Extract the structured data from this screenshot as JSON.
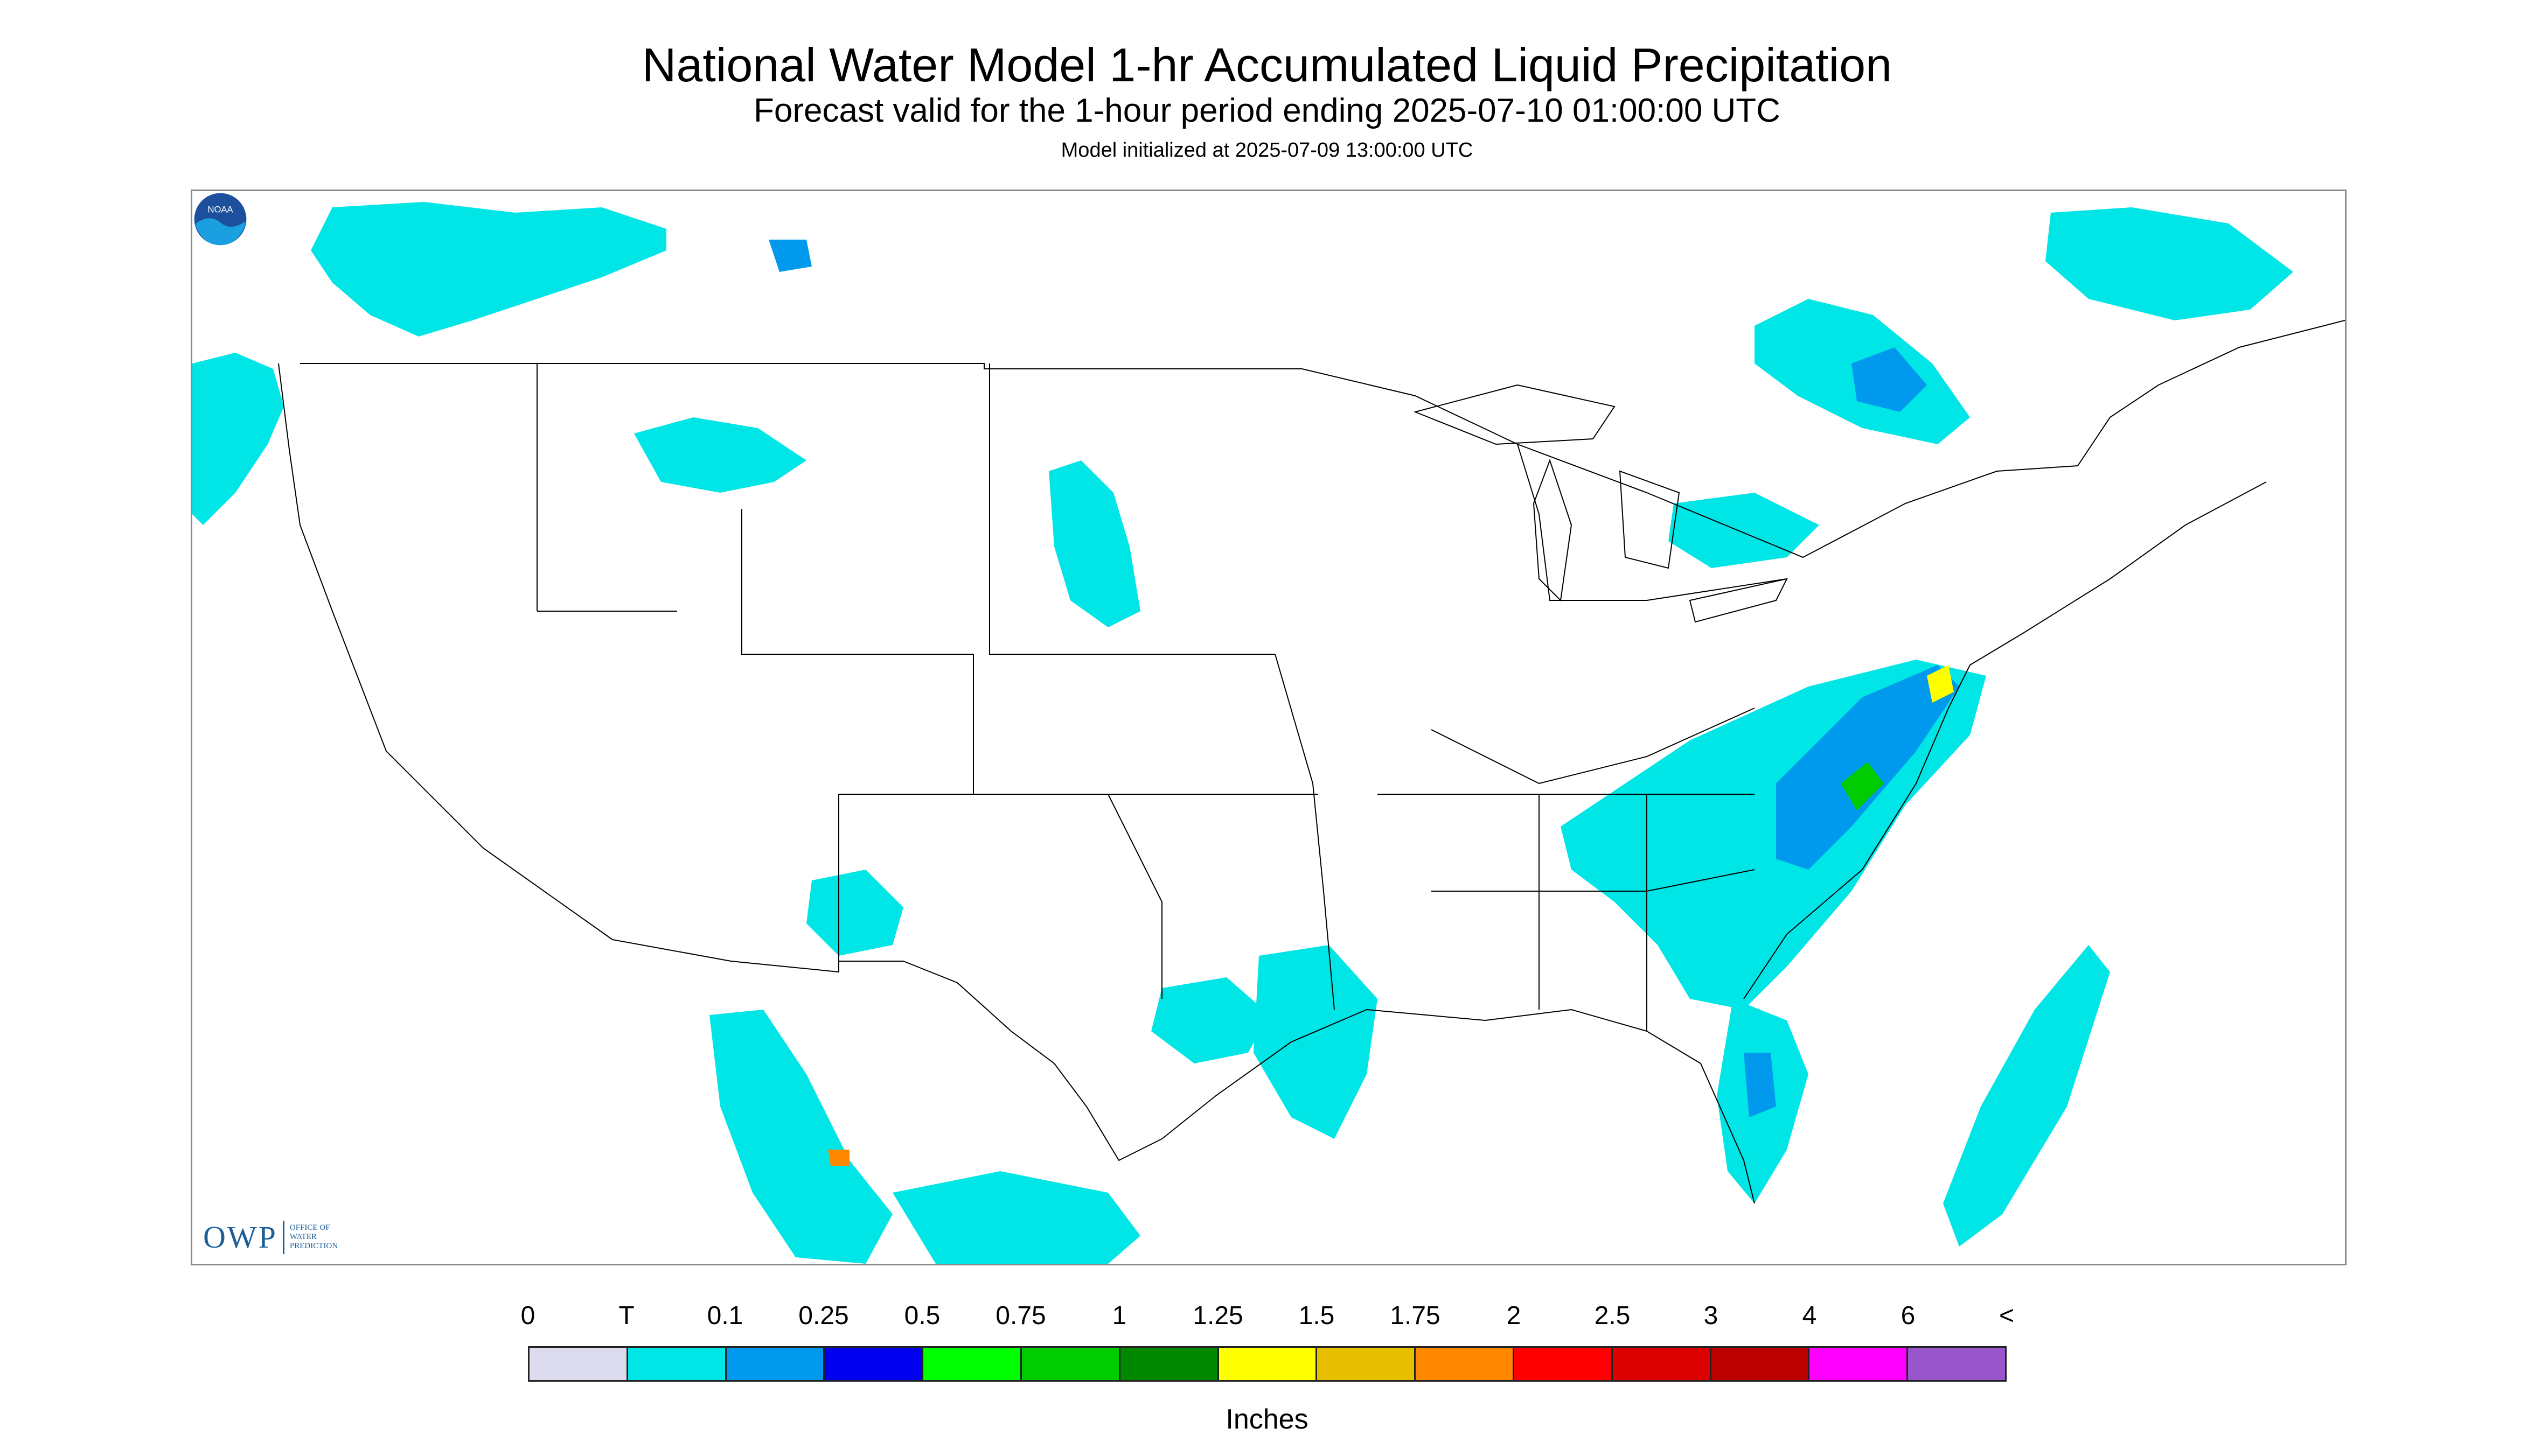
{
  "header": {
    "title": "National Water Model 1-hr Accumulated Liquid Precipitation",
    "subtitle": "Forecast valid for the 1-hour period ending 2025-07-10 01:00:00 UTC",
    "init": "Model initialized at 2025-07-09 13:00:00 UTC"
  },
  "logos": {
    "owp_mark": "OWP",
    "owp_text_1": "OFFICE OF",
    "owp_text_2": "WATER",
    "owp_text_3": "PREDICTION",
    "noaa_label": "NOAA"
  },
  "legend": {
    "units": "Inches",
    "ticks": [
      "0",
      "T",
      "0.1",
      "0.25",
      "0.5",
      "0.75",
      "1",
      "1.25",
      "1.5",
      "1.75",
      "2",
      "2.5",
      "3",
      "4",
      "6",
      "<"
    ],
    "colors": [
      "#dcdcee",
      "#00e5e5",
      "#0099ee",
      "#0000ee",
      "#00ff00",
      "#00cc00",
      "#008800",
      "#ffff00",
      "#e6c000",
      "#ff8800",
      "#ff0000",
      "#dd0000",
      "#bb0000",
      "#ff00ff",
      "#9955cc"
    ]
  },
  "map": {
    "background_color": "#dcdcee",
    "outside_color": "#ffffff",
    "boundary_color": "#000000"
  }
}
